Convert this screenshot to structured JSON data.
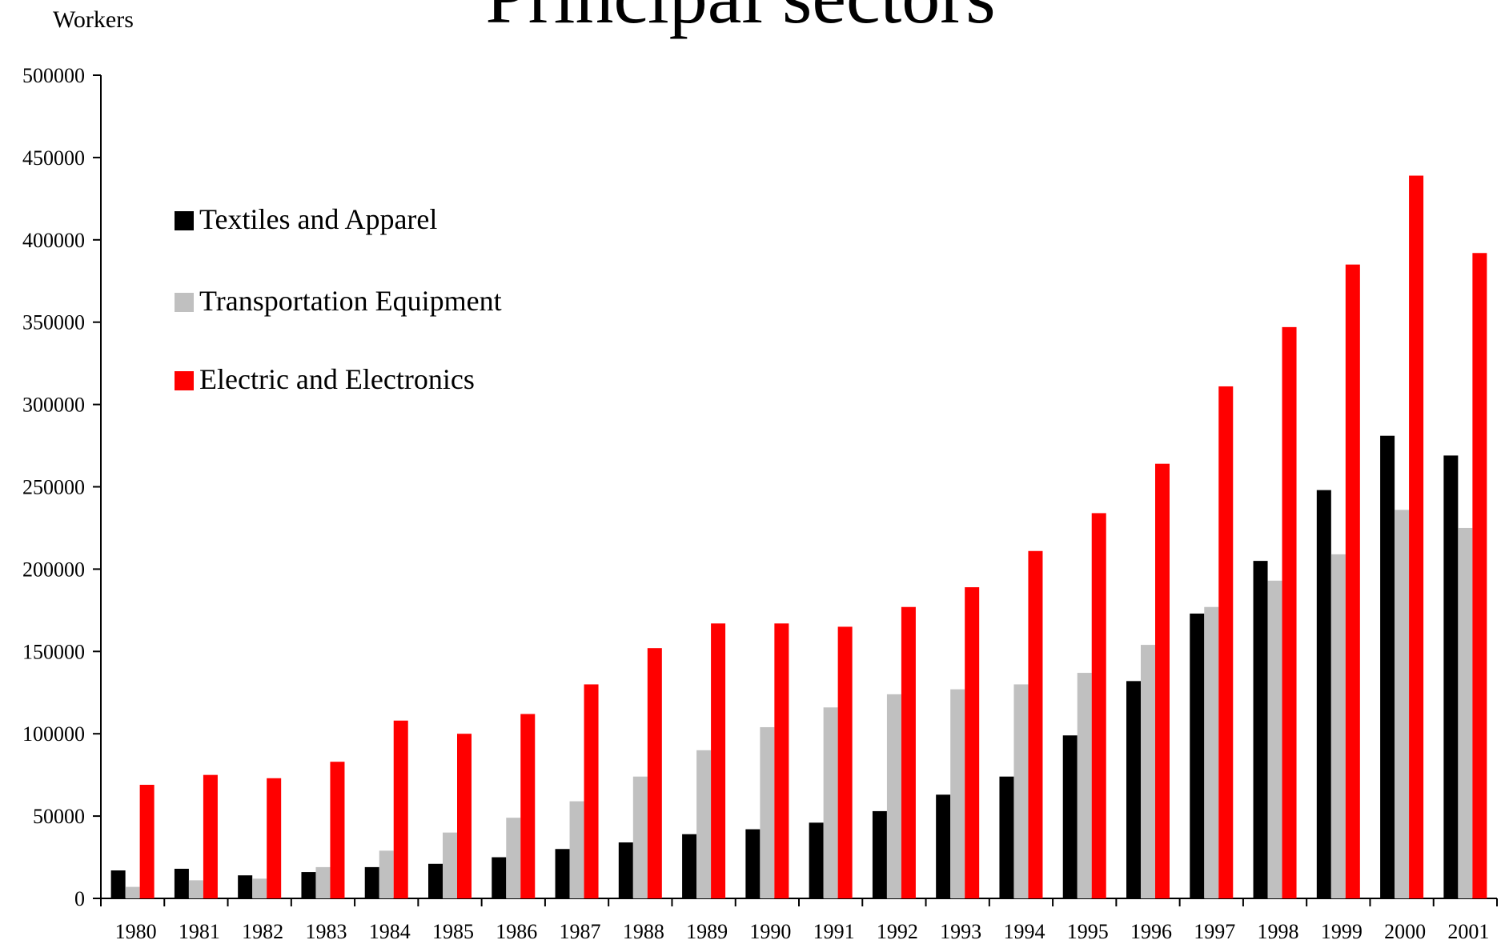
{
  "chart_data": {
    "type": "bar",
    "title": "Principal sectors",
    "y_label": "Workers",
    "categories": [
      "1980",
      "1981",
      "1982",
      "1983",
      "1984",
      "1985",
      "1986",
      "1987",
      "1988",
      "1989",
      "1990",
      "1991",
      "1992",
      "1993",
      "1994",
      "1995",
      "1996",
      "1997",
      "1998",
      "1999",
      "2000",
      "2001"
    ],
    "series": [
      {
        "name": "Textiles and Apparel",
        "color": "#000000",
        "values": [
          17000,
          18000,
          14000,
          16000,
          19000,
          21000,
          25000,
          30000,
          34000,
          39000,
          42000,
          46000,
          53000,
          63000,
          74000,
          99000,
          132000,
          173000,
          205000,
          248000,
          281000,
          269000
        ]
      },
      {
        "name": "Transportation Equipment",
        "color": "#c0c0c0",
        "values": [
          7000,
          11000,
          12000,
          19000,
          29000,
          40000,
          49000,
          59000,
          74000,
          90000,
          104000,
          116000,
          124000,
          127000,
          130000,
          137000,
          154000,
          177000,
          193000,
          209000,
          236000,
          225000
        ]
      },
      {
        "name": "Electric and Electronics",
        "color": "#ff0000",
        "values": [
          69000,
          75000,
          73000,
          83000,
          108000,
          100000,
          112000,
          130000,
          152000,
          167000,
          167000,
          165000,
          177000,
          189000,
          211000,
          234000,
          264000,
          311000,
          347000,
          385000,
          439000,
          392000
        ]
      }
    ],
    "ylim": [
      0,
      500000
    ],
    "yticks": [
      0,
      50000,
      100000,
      150000,
      200000,
      250000,
      300000,
      350000,
      400000,
      450000,
      500000
    ],
    "legend": "upper left",
    "grid": false
  }
}
